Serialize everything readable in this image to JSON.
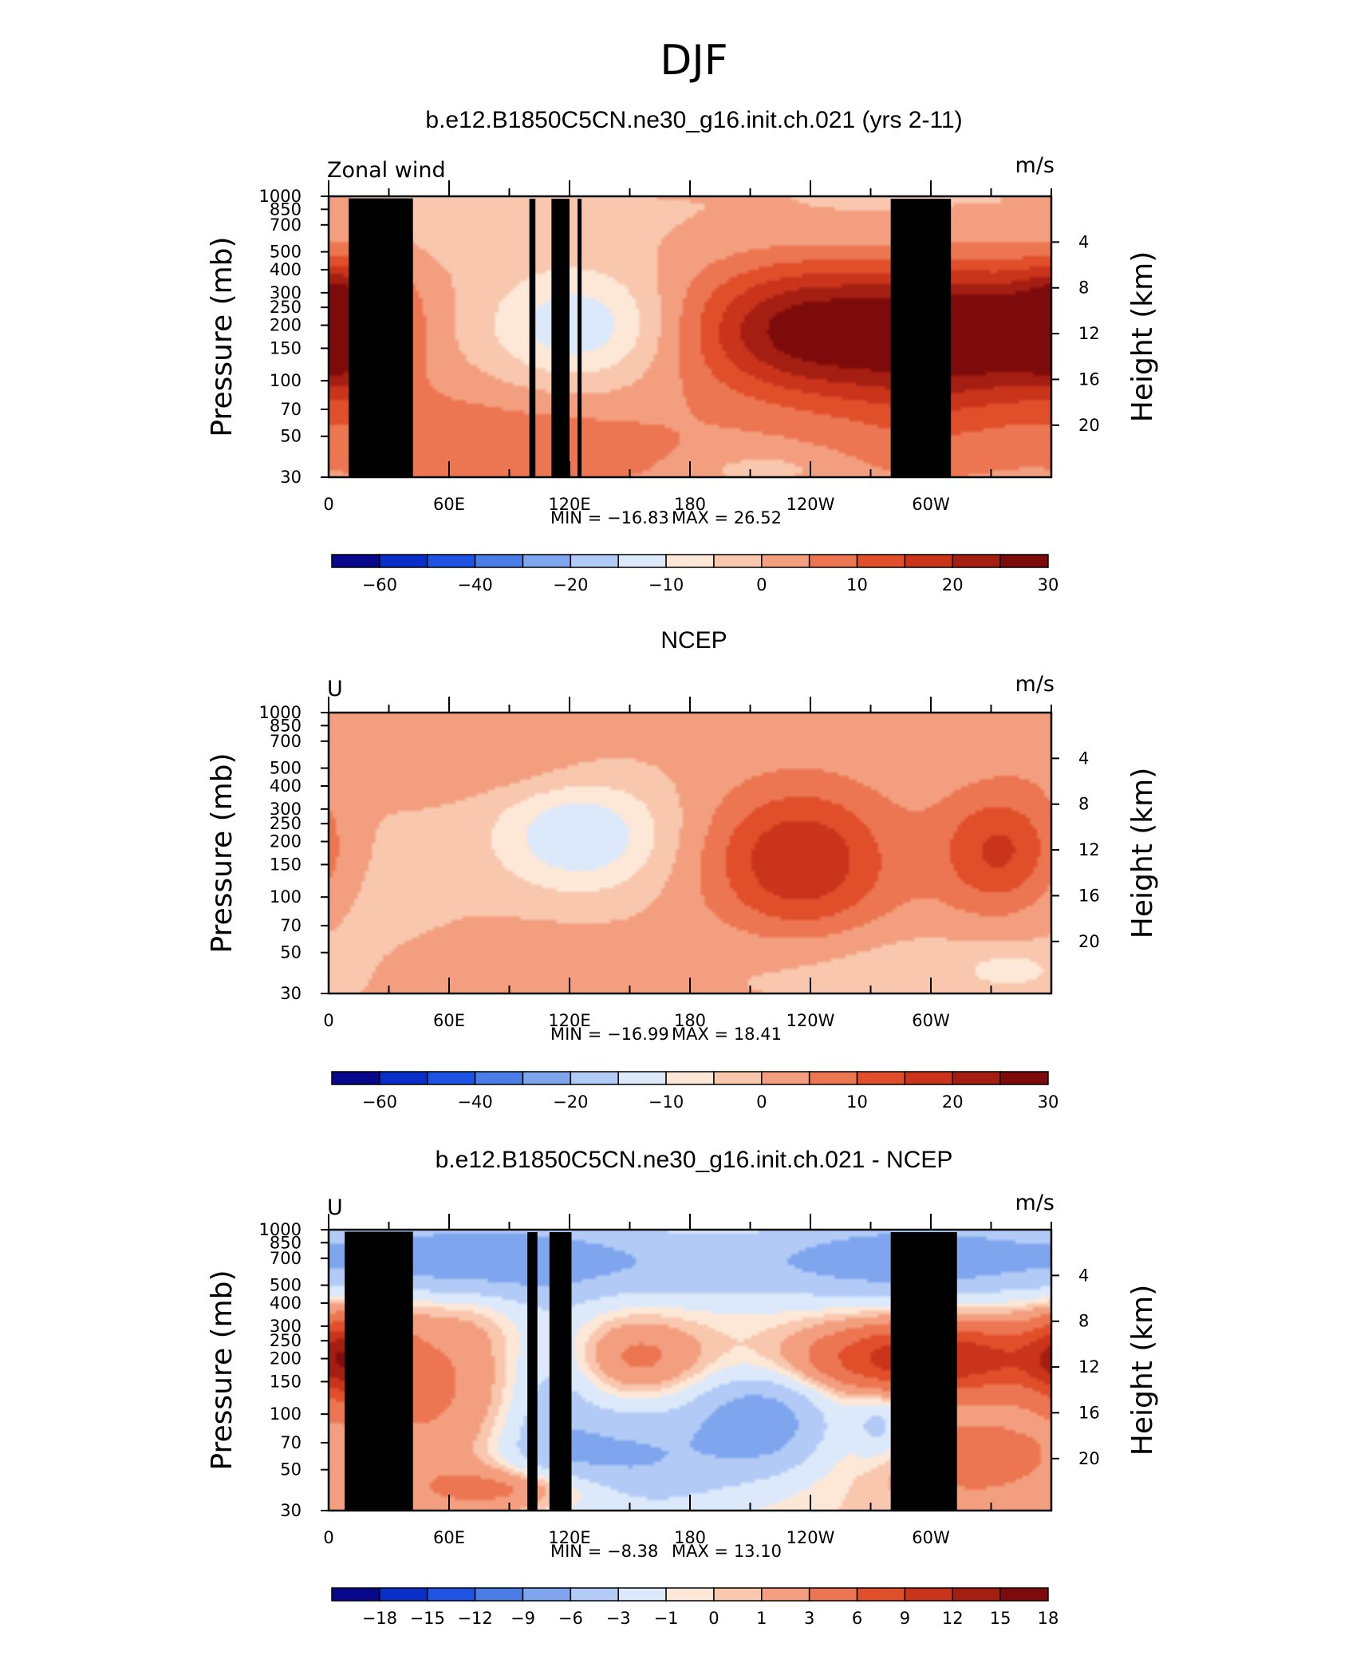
{
  "figure": {
    "season_title": "DJF",
    "colors": {
      "palette": [
        "#08088c",
        "#0a2fc8",
        "#1f53e3",
        "#4a7ee6",
        "#7ea5ee",
        "#b2cbf6",
        "#dce9fb",
        "#fde8d8",
        "#f8c7ad",
        "#f39f7f",
        "#ec7651",
        "#e04e2a",
        "#c9341b",
        "#a41e12",
        "#7e0b0b"
      ],
      "frame": "#000000",
      "topography": "#000000"
    }
  },
  "chart_data": [
    {
      "type": "heatmap",
      "panel": "model",
      "title": "b.e12.B1850C5CN.ne30_g16.init.ch.021 (yrs 2-11)",
      "left_string": "Zonal wind",
      "right_string": "m/s",
      "ylabel": "Pressure (mb)",
      "ylabel_right": "Height (km)",
      "x_ticks": [
        "0",
        "60E",
        "120E",
        "180",
        "120W",
        "60W"
      ],
      "x_tick_values": [
        0,
        60,
        120,
        180,
        240,
        300
      ],
      "xlim": [
        0,
        360
      ],
      "y_ticks": [
        "30",
        "50",
        "70",
        "100",
        "150",
        "200",
        "250",
        "300",
        "400",
        "500",
        "700",
        "850",
        "1000"
      ],
      "y_tick_values": [
        30,
        50,
        70,
        100,
        150,
        200,
        250,
        300,
        400,
        500,
        700,
        850,
        1000
      ],
      "ylim": [
        1000,
        30
      ],
      "y_scale": "log",
      "height_ticks": [
        "4",
        "8",
        "12",
        "16",
        "20"
      ],
      "height_tick_values": [
        4,
        8,
        12,
        16,
        20
      ],
      "min_label": "MIN = −16.83",
      "max_label": "MAX =  26.52",
      "min": -16.83,
      "max": 26.52,
      "colorbar_labels": [
        "−60",
        "−40",
        "−20",
        "−10",
        "0",
        "10",
        "20",
        "30"
      ],
      "colorbar_label_positions": [
        1,
        3,
        5,
        7,
        9,
        11,
        13,
        15
      ],
      "fields": [
        {
          "lon": 10,
          "p": 150,
          "a": 24,
          "sx": 18,
          "sy": 0.55
        },
        {
          "lon": 125,
          "p": 150,
          "a": -15,
          "sx": 32,
          "sy": 0.5
        },
        {
          "lon": 238,
          "p": 160,
          "a": 26,
          "sx": 42,
          "sy": 0.6
        },
        {
          "lon": 323,
          "p": 160,
          "a": 27,
          "sx": 38,
          "sy": 0.6
        },
        {
          "lon": 110,
          "p": 700,
          "a": 7,
          "sx": 55,
          "sy": 0.45
        },
        {
          "lon": 40,
          "p": 600,
          "a": 4,
          "sx": 35,
          "sy": 0.5
        },
        {
          "lon": 215,
          "p": 900,
          "a": -5,
          "sx": 20,
          "sy": 0.12
        },
        {
          "lon": 300,
          "p": 500,
          "a": 6,
          "sx": 40,
          "sy": 0.7
        },
        {
          "lon": 50,
          "p": 45,
          "a": -2.5,
          "sx": 80,
          "sy": 0.4
        },
        {
          "lon": 255,
          "p": 40,
          "a": -2,
          "sx": 60,
          "sy": 0.4
        }
      ],
      "topography": [
        {
          "lon_start": 10,
          "lon_end": 42,
          "p_top": 975
        },
        {
          "lon_start": 28,
          "lon_end": 38,
          "p_top": 920
        },
        {
          "lon_start": 100,
          "lon_end": 103,
          "p_top": 970
        },
        {
          "lon_start": 111,
          "lon_end": 120,
          "p_top": 970
        },
        {
          "lon_start": 124,
          "lon_end": 126,
          "p_top": 970
        },
        {
          "lon_start": 280,
          "lon_end": 310,
          "p_top": 970
        }
      ]
    },
    {
      "type": "heatmap",
      "panel": "obs",
      "title": "NCEP",
      "left_string": "U",
      "right_string": "m/s",
      "ylabel": "Pressure (mb)",
      "ylabel_right": "Height (km)",
      "x_ticks": [
        "0",
        "60E",
        "120E",
        "180",
        "120W",
        "60W"
      ],
      "x_tick_values": [
        0,
        60,
        120,
        180,
        240,
        300
      ],
      "xlim": [
        0,
        360
      ],
      "y_ticks": [
        "30",
        "50",
        "70",
        "100",
        "150",
        "200",
        "250",
        "300",
        "400",
        "500",
        "700",
        "850",
        "1000"
      ],
      "y_tick_values": [
        30,
        50,
        70,
        100,
        150,
        200,
        250,
        300,
        400,
        500,
        700,
        850,
        1000
      ],
      "ylim": [
        1000,
        30
      ],
      "y_scale": "log",
      "height_ticks": [
        "4",
        "8",
        "12",
        "16",
        "20"
      ],
      "height_tick_values": [
        4,
        8,
        12,
        16,
        20
      ],
      "min_label": "MIN = −16.99",
      "max_label": "MAX =   18.41",
      "min": -16.99,
      "max": 18.41,
      "colorbar_labels": [
        "−60",
        "−40",
        "−20",
        "−10",
        "0",
        "10",
        "20",
        "30"
      ],
      "colorbar_label_positions": [
        1,
        3,
        5,
        7,
        9,
        11,
        13,
        15
      ],
      "fields": [
        {
          "lon": 125,
          "p": 140,
          "a": -16,
          "sx": 30,
          "sy": 0.5
        },
        {
          "lon": 235,
          "p": 190,
          "a": 19,
          "sx": 32,
          "sy": 0.65
        },
        {
          "lon": 335,
          "p": 170,
          "a": 16,
          "sx": 22,
          "sy": 0.55
        },
        {
          "lon": 35,
          "p": 60,
          "a": 4,
          "sx": 30,
          "sy": 0.25
        },
        {
          "lon": 100,
          "p": 60,
          "a": 3,
          "sx": 30,
          "sy": 0.25
        },
        {
          "lon": 20,
          "p": 250,
          "a": -3,
          "sx": 35,
          "sy": 0.8
        },
        {
          "lon": 100,
          "p": 700,
          "a": 3.5,
          "sx": 55,
          "sy": 0.3
        },
        {
          "lon": 270,
          "p": 700,
          "a": -4,
          "sx": 70,
          "sy": 0.35
        },
        {
          "lon": 340,
          "p": 750,
          "a": -7,
          "sx": 15,
          "sy": 0.15
        },
        {
          "lon": 285,
          "p": 150,
          "a": -2,
          "sx": 6,
          "sy": 0.1
        }
      ],
      "topography": []
    },
    {
      "type": "heatmap",
      "panel": "difference",
      "title": "b.e12.B1850C5CN.ne30_g16.init.ch.021 - NCEP",
      "left_string": "U",
      "right_string": "m/s",
      "ylabel": "Pressure (mb)",
      "ylabel_right": "Height (km)",
      "x_ticks": [
        "0",
        "60E",
        "120E",
        "180",
        "120W",
        "60W"
      ],
      "x_tick_values": [
        0,
        60,
        120,
        180,
        240,
        300
      ],
      "xlim": [
        0,
        360
      ],
      "y_ticks": [
        "30",
        "50",
        "70",
        "100",
        "150",
        "200",
        "250",
        "300",
        "400",
        "500",
        "700",
        "850",
        "1000"
      ],
      "y_tick_values": [
        30,
        50,
        70,
        100,
        150,
        200,
        250,
        300,
        400,
        500,
        700,
        850,
        1000
      ],
      "ylim": [
        1000,
        30
      ],
      "y_scale": "log",
      "height_ticks": [
        "4",
        "8",
        "12",
        "16",
        "20"
      ],
      "height_tick_values": [
        4,
        8,
        12,
        16,
        20
      ],
      "min_label": "MIN =   −8.38",
      "max_label": "MAX =   13.10",
      "min": -8.38,
      "max": 13.1,
      "colorbar_labels": [
        "−18",
        "−15",
        "−12",
        "−9",
        "−6",
        "−3",
        "−1",
        "0",
        "1",
        "3",
        "6",
        "9",
        "12",
        "15",
        "18"
      ],
      "colorbar_label_positions": [
        1,
        2,
        3,
        4,
        5,
        6,
        7,
        8,
        9,
        10,
        11,
        12,
        13,
        14,
        15
      ],
      "fields": [
        {
          "lon": 10,
          "p": 150,
          "a": 11,
          "sx": 14,
          "sy": 0.35
        },
        {
          "lon": 300,
          "p": 150,
          "a": 12,
          "sx": 42,
          "sy": 0.3
        },
        {
          "lon": 155,
          "p": 150,
          "a": 4.5,
          "sx": 25,
          "sy": 0.35
        },
        {
          "lon": 55,
          "p": 250,
          "a": 3,
          "sx": 35,
          "sy": 0.9
        },
        {
          "lon": 215,
          "p": 330,
          "a": -7,
          "sx": 22,
          "sy": 0.4
        },
        {
          "lon": 140,
          "p": 550,
          "a": -6,
          "sx": 40,
          "sy": 0.45
        },
        {
          "lon": 110,
          "p": 200,
          "a": -4,
          "sx": 18,
          "sy": 0.8
        },
        {
          "lon": 100,
          "p": 750,
          "a": 5,
          "sx": 32,
          "sy": 0.2
        },
        {
          "lon": 320,
          "p": 520,
          "a": 4,
          "sx": 30,
          "sy": 0.4
        },
        {
          "lon": 275,
          "p": 350,
          "a": -4,
          "sx": 10,
          "sy": 0.3
        },
        {
          "lon": 60,
          "p": 42,
          "a": -8,
          "sx": 60,
          "sy": 0.35
        },
        {
          "lon": 290,
          "p": 42,
          "a": -7,
          "sx": 45,
          "sy": 0.35
        },
        {
          "lon": 180,
          "p": 45,
          "a": -4,
          "sx": 80,
          "sy": 0.35
        },
        {
          "lon": 190,
          "p": 280,
          "a": -2,
          "sx": 60,
          "sy": 1.0
        }
      ],
      "topography": [
        {
          "lon_start": 8,
          "lon_end": 42,
          "p_top": 975
        },
        {
          "lon_start": 26,
          "lon_end": 40,
          "p_top": 900
        },
        {
          "lon_start": 99,
          "lon_end": 104,
          "p_top": 970
        },
        {
          "lon_start": 110,
          "lon_end": 121,
          "p_top": 970
        },
        {
          "lon_start": 280,
          "lon_end": 313,
          "p_top": 970
        }
      ]
    }
  ]
}
